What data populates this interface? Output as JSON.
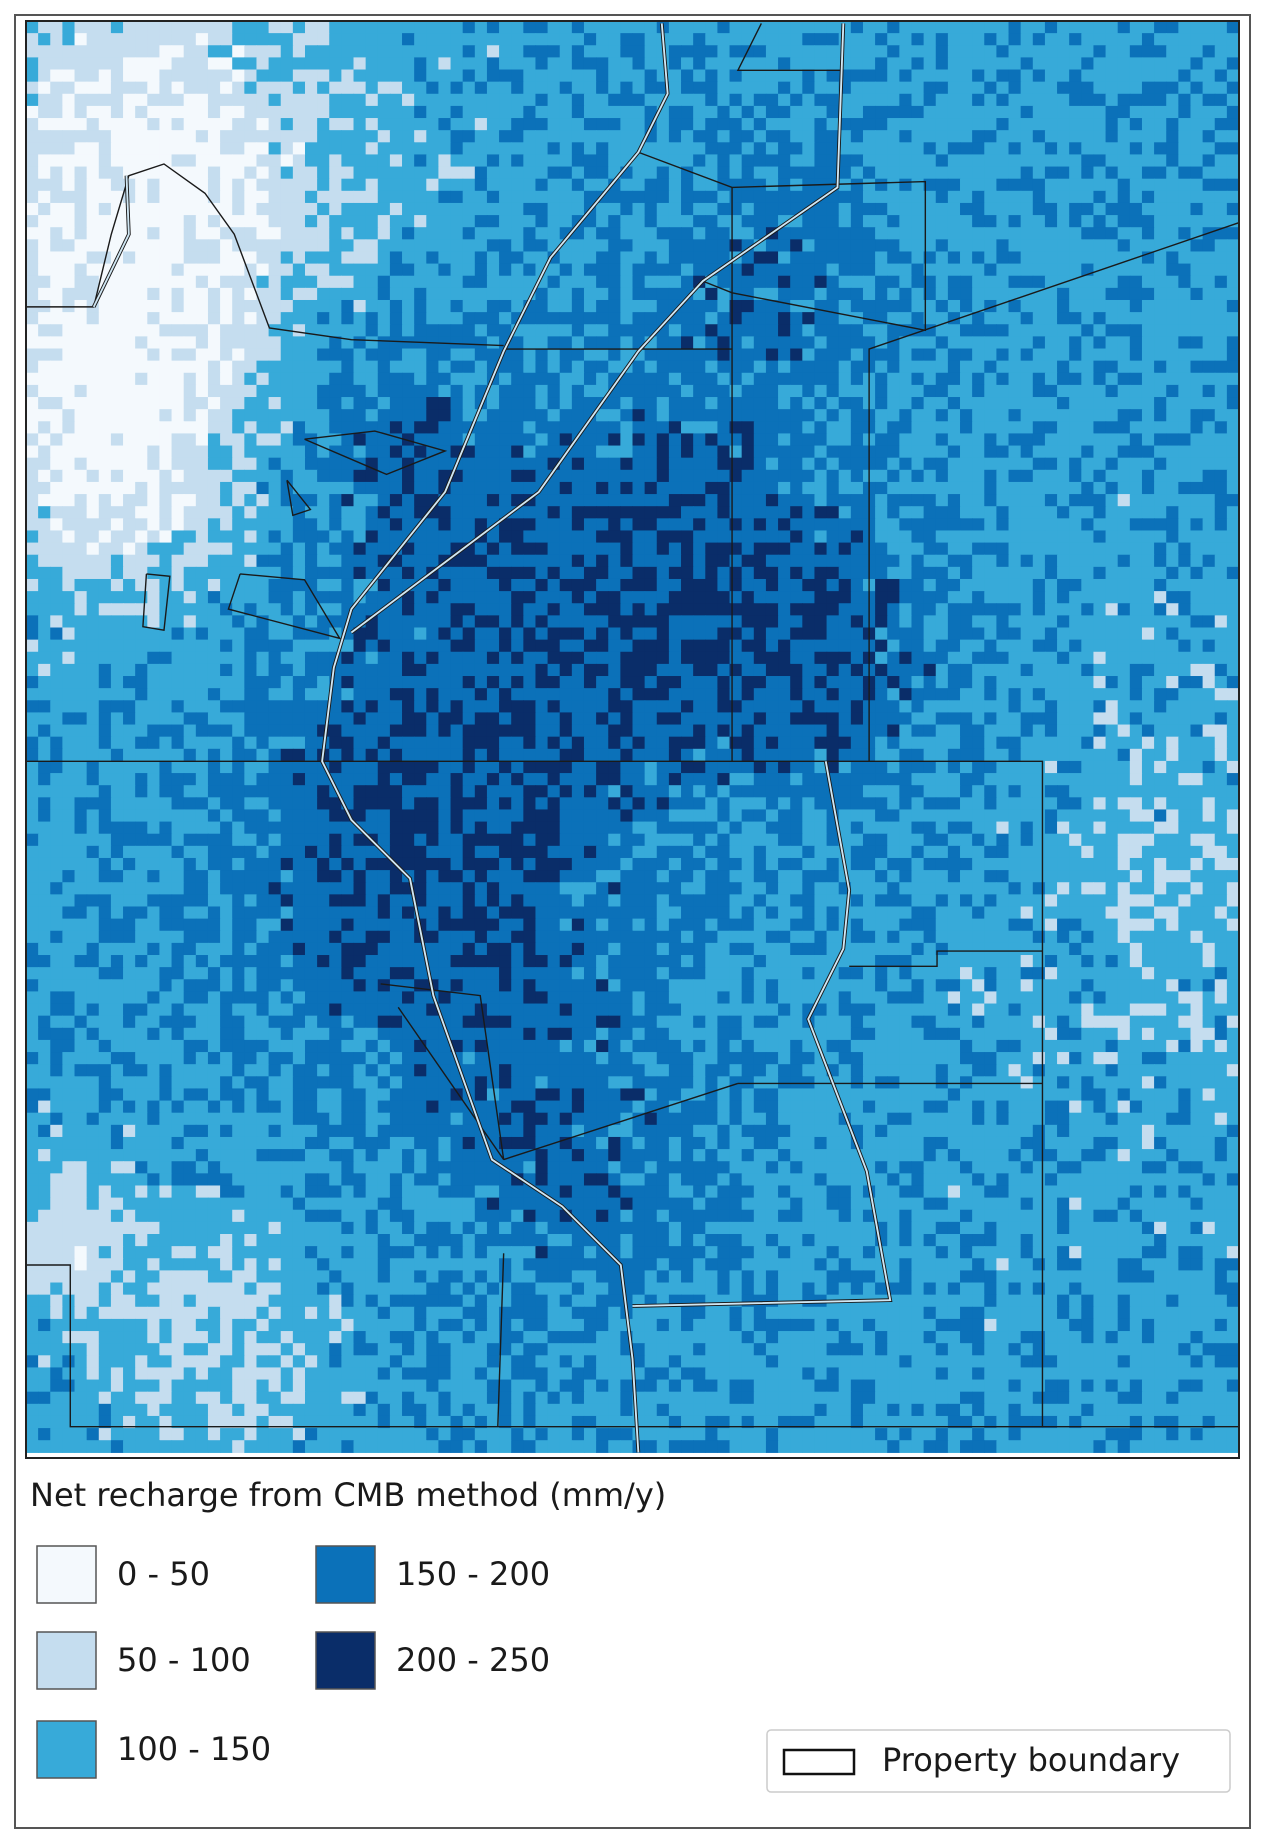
{
  "legend": {
    "title": "Net recharge from CMB method (mm/y)",
    "classes": [
      {
        "label": "0 - 50",
        "color": "#f4f9fd"
      },
      {
        "label": "50 - 100",
        "color": "#c5ddef"
      },
      {
        "label": "100 - 150",
        "color": "#37aad9"
      },
      {
        "label": "150 - 200",
        "color": "#0b71b9"
      },
      {
        "label": "200 - 250",
        "color": "#0a2d69"
      }
    ],
    "boundary_label": "Property boundary"
  }
}
